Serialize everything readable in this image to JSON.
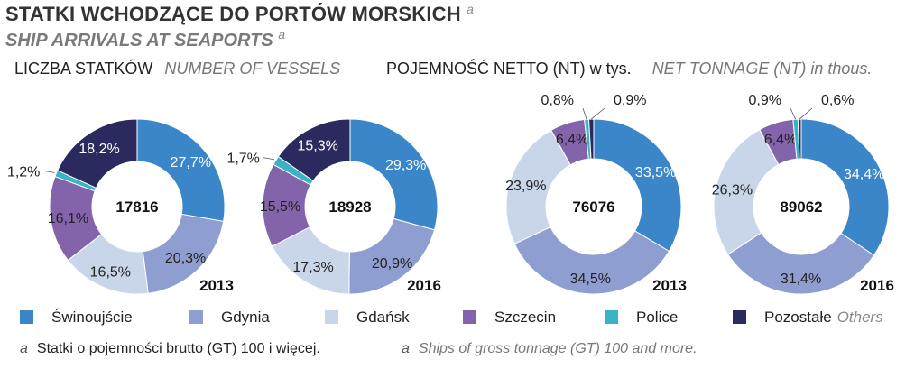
{
  "header": {
    "title": "STATKI WCHODZĄCE DO PORTÓW MORSKICH",
    "subtitle": "SHIP ARRIVALS AT SEAPORTS",
    "footnote_mark": "a"
  },
  "sections": {
    "vessels_pl": "LICZBA STATKÓW",
    "vessels_en": "NUMBER OF VESSELS",
    "tonnage_pl": "POJEMNOŚĆ NETTO (NT) w tys.",
    "tonnage_en": "NET TONNAGE (NT) in thous."
  },
  "legend": [
    {
      "label": "Świnoujście",
      "color": "#3a86c8"
    },
    {
      "label": "Gdynia",
      "color": "#8f9ed0"
    },
    {
      "label": "Gdańsk",
      "color": "#c9d6ea"
    },
    {
      "label": "Szczecin",
      "color": "#8364aa"
    },
    {
      "label": "Police",
      "color": "#3ab2c8"
    },
    {
      "label": "Pozostałe",
      "label_en": "Others",
      "color": "#2a2a5e"
    }
  ],
  "footnote": {
    "mark": "a",
    "pl": "Statki o pojemności brutto (GT) 100 i więcej.",
    "en": "Ships of gross tonnage (GT) 100 and more."
  },
  "chart_data": [
    {
      "type": "pie",
      "group": "number_of_vessels",
      "year": "2013",
      "total": "17816",
      "categories": [
        "Świnoujście",
        "Gdynia",
        "Gdańsk",
        "Szczecin",
        "Police",
        "Pozostałe"
      ],
      "values": [
        27.7,
        20.3,
        16.5,
        16.1,
        1.2,
        18.2
      ],
      "labels": [
        "27,7%",
        "20,3%",
        "16,5%",
        "16,1%",
        "1,2%",
        "18,2%"
      ]
    },
    {
      "type": "pie",
      "group": "number_of_vessels",
      "year": "2016",
      "total": "18928",
      "categories": [
        "Świnoujście",
        "Gdynia",
        "Gdańsk",
        "Szczecin",
        "Police",
        "Pozostałe"
      ],
      "values": [
        29.3,
        20.9,
        17.3,
        15.5,
        1.7,
        15.3
      ],
      "labels": [
        "29,3%",
        "20,9%",
        "17,3%",
        "15,5%",
        "1,7%",
        "15,3%"
      ]
    },
    {
      "type": "pie",
      "group": "net_tonnage",
      "year": "2013",
      "total": "76076",
      "categories": [
        "Świnoujście",
        "Gdynia",
        "Gdańsk",
        "Szczecin",
        "Police",
        "Pozostałe"
      ],
      "values": [
        33.5,
        34.5,
        23.9,
        6.4,
        0.8,
        0.9
      ],
      "labels": [
        "33,5%",
        "34,5%",
        "23,9%",
        "6,4%",
        "0,8%",
        "0,9%"
      ]
    },
    {
      "type": "pie",
      "group": "net_tonnage",
      "year": "2016",
      "total": "89062",
      "categories": [
        "Świnoujście",
        "Gdynia",
        "Gdańsk",
        "Szczecin",
        "Police",
        "Pozostałe"
      ],
      "values": [
        34.4,
        31.4,
        26.3,
        6.4,
        0.9,
        0.6
      ],
      "labels": [
        "34,4%",
        "31,4%",
        "26,3%",
        "6,4%",
        "0,9%",
        "0,6%"
      ]
    }
  ]
}
